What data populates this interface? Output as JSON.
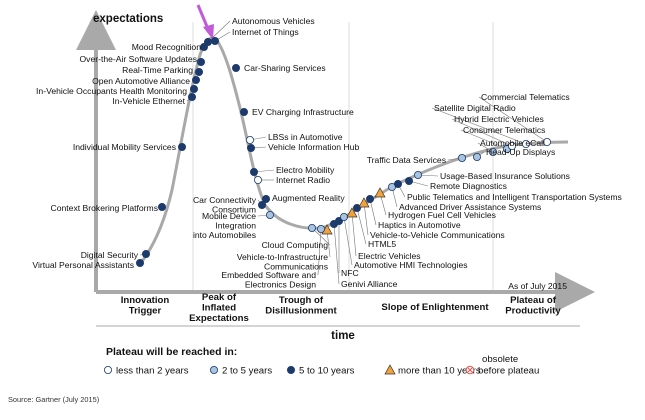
{
  "chart_data": {
    "type": "hype-cycle",
    "ylabel": "expectations",
    "xlabel": "time",
    "as_of": "As of July 2015",
    "source": "Source: Gartner (July 2015)",
    "phases": [
      "Innovation\nTrigger",
      "Peak of\nInflated\nExpectations",
      "Trough of\nDisillusionment",
      "Slope of Enlightenment",
      "Plateau of\nProductivity"
    ],
    "legend": {
      "title": "Plateau will be reached in:",
      "items": [
        {
          "key": "lt2",
          "label": "less than 2 years"
        },
        {
          "key": "2to5",
          "label": "2 to 5 years"
        },
        {
          "key": "5to10",
          "label": "5 to 10 years"
        },
        {
          "key": "gt10",
          "label": "more than 10 years"
        },
        {
          "key": "obsolete",
          "label": "obsolete\nbefore plateau"
        }
      ]
    },
    "colors": {
      "curve": "#a9a9a9",
      "lt2": "#ffffff",
      "2to5": "#a9c4e0",
      "5to10": "#1c3a6b",
      "gt10": "#f1a23a",
      "obsolete": "#e0584f",
      "highlight_arrow": "#c25bd8"
    },
    "technologies": [
      {
        "name": "Digital Security",
        "rating": "5to10"
      },
      {
        "name": "Virtual Personal Assistants",
        "rating": "5to10"
      },
      {
        "name": "Context Brokering Platforms",
        "rating": "5to10"
      },
      {
        "name": "Individual Mobility Services",
        "rating": "5to10"
      },
      {
        "name": "In-Vehicle Ethernet",
        "rating": "5to10"
      },
      {
        "name": "In-Vehicle Occupants Health Monitoring",
        "rating": "5to10"
      },
      {
        "name": "Open Automotive Alliance",
        "rating": "5to10"
      },
      {
        "name": "Real-Time Parking",
        "rating": "5to10"
      },
      {
        "name": "Over-the-Air Software Updates",
        "rating": "5to10"
      },
      {
        "name": "Mood Recognition",
        "rating": "5to10"
      },
      {
        "name": "Autonomous Vehicles",
        "rating": "5to10"
      },
      {
        "name": "Internet of Things",
        "rating": "5to10"
      },
      {
        "name": "Car-Sharing Services",
        "rating": "5to10"
      },
      {
        "name": "EV Charging Infrastructure",
        "rating": "5to10"
      },
      {
        "name": "LBSs in Automotive",
        "rating": "lt2"
      },
      {
        "name": "Vehicle Information Hub",
        "rating": "5to10"
      },
      {
        "name": "Electro Mobility",
        "rating": "5to10"
      },
      {
        "name": "Internet Radio",
        "rating": "lt2"
      },
      {
        "name": "Augmented Reality",
        "rating": "5to10"
      },
      {
        "name": "Car Connectivity Consortium",
        "rating": "5to10"
      },
      {
        "name": "Mobile Device Integration into Automobiles",
        "rating": "2to5"
      },
      {
        "name": "Cloud Computing",
        "rating": "2to5"
      },
      {
        "name": "Vehicle-to-Infrastructure Communications",
        "rating": "gt10"
      },
      {
        "name": "Embedded Software and Electronics Design",
        "rating": "2to5"
      },
      {
        "name": "NFC",
        "rating": "5to10"
      },
      {
        "name": "Genivi Alliance",
        "rating": "5to10"
      },
      {
        "name": "Automotive HMI Technologies",
        "rating": "2to5"
      },
      {
        "name": "Electric Vehicles",
        "rating": "gt10"
      },
      {
        "name": "HTML5",
        "rating": "5to10"
      },
      {
        "name": "Vehicle-to-Vehicle Communications",
        "rating": "gt10"
      },
      {
        "name": "Haptics in Automotive",
        "rating": "5to10"
      },
      {
        "name": "Hydrogen Fuel Cell Vehicles",
        "rating": "gt10"
      },
      {
        "name": "Advanced Driver Assistance Systems",
        "rating": "2to5"
      },
      {
        "name": "Public Telematics and Intelligent Transportation Systems",
        "rating": "5to10"
      },
      {
        "name": "Remote Diagnostics",
        "rating": "5to10"
      },
      {
        "name": "Usage-Based Insurance Solutions",
        "rating": "2to5"
      },
      {
        "name": "Traffic Data Services",
        "rating": "2to5"
      },
      {
        "name": "Head-Up Displays",
        "rating": "2to5"
      },
      {
        "name": "Automobile eCall",
        "rating": "2to5"
      },
      {
        "name": "Consumer Telematics",
        "rating": "2to5"
      },
      {
        "name": "Hybrid Electric Vehicles",
        "rating": "lt2"
      },
      {
        "name": "Satellite Digital Radio",
        "rating": "lt2"
      },
      {
        "name": "Commercial Telematics",
        "rating": "lt2"
      }
    ]
  }
}
